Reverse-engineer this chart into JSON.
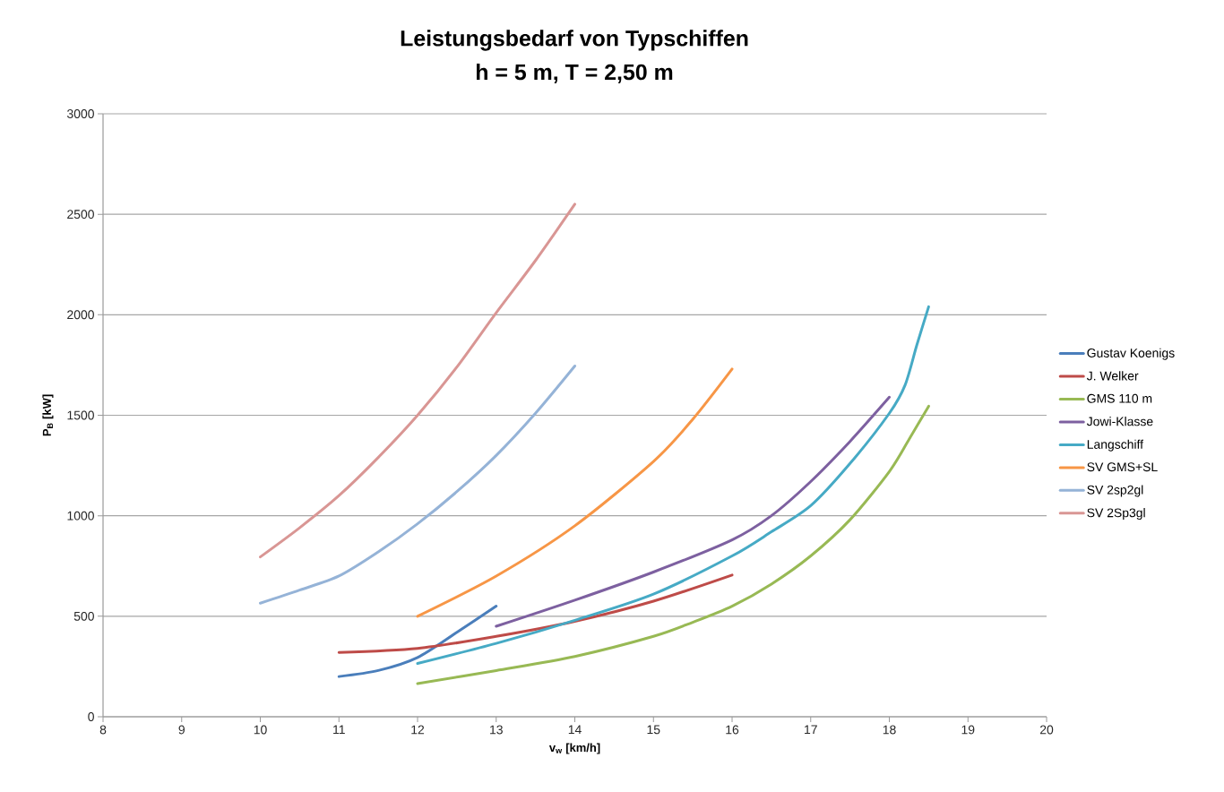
{
  "chart_data": {
    "type": "line",
    "title": "Leistungsbedarf von Typschiffen",
    "subtitle": "h = 5 m, T = 2,50 m",
    "xlabel": "v$_{w}$ [km/h]",
    "ylabel": "P$_{B}$ [kW]",
    "xlim": [
      8,
      20
    ],
    "xticks": [
      8,
      9,
      10,
      11,
      12,
      13,
      14,
      15,
      16,
      17,
      18,
      19,
      20
    ],
    "ylim": [
      0,
      3000
    ],
    "yticks": [
      0,
      500,
      1000,
      1500,
      2000,
      2500,
      3000
    ],
    "grid": "y",
    "legend": "right",
    "marker": "none",
    "line_style": "solid",
    "series": [
      {
        "name": "Gustav Koenigs",
        "color": "#4a7ebb",
        "x": [
          11,
          11.5,
          12,
          12.5,
          13
        ],
        "values": [
          200,
          230,
          295,
          420,
          550
        ]
      },
      {
        "name": "J. Welker",
        "color": "#be4b48",
        "x": [
          11,
          12,
          13,
          14,
          15,
          16
        ],
        "values": [
          320,
          340,
          400,
          475,
          575,
          705
        ]
      },
      {
        "name": "GMS 110 m",
        "color": "#98b954",
        "x": [
          12,
          13,
          14,
          15,
          15.5,
          16,
          16.5,
          17,
          17.5,
          18,
          18.25,
          18.5
        ],
        "values": [
          165,
          230,
          300,
          400,
          470,
          550,
          660,
          800,
          980,
          1220,
          1380,
          1545
        ]
      },
      {
        "name": "Jowi-Klasse",
        "color": "#7d60a0",
        "x": [
          13,
          14,
          15,
          16,
          16.5,
          17,
          17.5,
          18
        ],
        "values": [
          450,
          580,
          720,
          880,
          1000,
          1170,
          1370,
          1590
        ]
      },
      {
        "name": "Langschiff",
        "color": "#46aac5",
        "x": [
          12,
          13,
          14,
          15,
          16,
          16.5,
          17,
          17.5,
          18,
          18.2,
          18.35,
          18.5
        ],
        "values": [
          265,
          365,
          480,
          610,
          800,
          920,
          1050,
          1260,
          1510,
          1650,
          1850,
          2040
        ]
      },
      {
        "name": "SV GMS+SL",
        "color": "#f79646",
        "x": [
          12,
          13,
          14,
          15,
          15.5,
          16
        ],
        "values": [
          500,
          700,
          950,
          1270,
          1480,
          1730
        ]
      },
      {
        "name": "SV 2sp2gl",
        "color": "#95b3d7",
        "x": [
          10,
          10.5,
          11,
          11.5,
          12,
          12.5,
          13,
          13.5,
          14
        ],
        "values": [
          565,
          630,
          700,
          820,
          960,
          1120,
          1300,
          1510,
          1745
        ]
      },
      {
        "name": "SV 2Sp3gl",
        "color": "#d99694",
        "x": [
          10,
          10.5,
          11,
          11.5,
          12,
          12.5,
          13,
          13.5,
          14
        ],
        "values": [
          795,
          940,
          1100,
          1290,
          1500,
          1740,
          2010,
          2270,
          2550
        ]
      }
    ]
  }
}
